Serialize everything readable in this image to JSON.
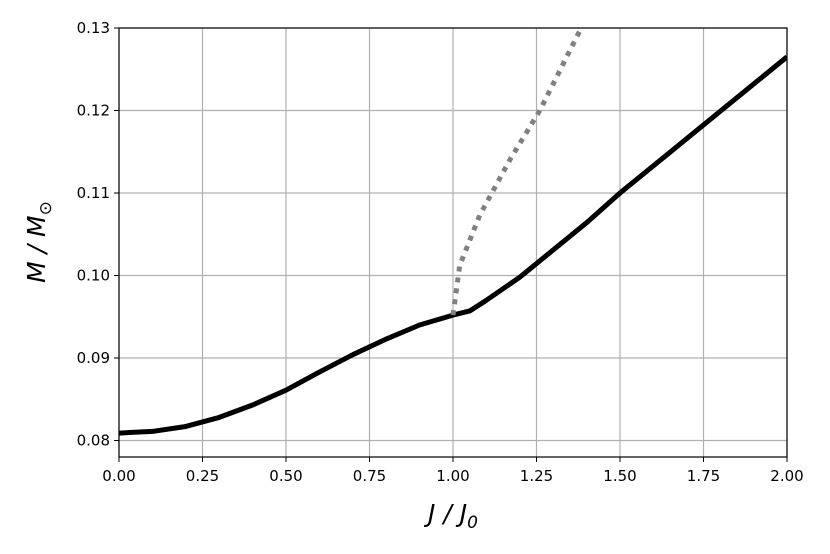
{
  "chart_data": {
    "type": "line",
    "xlabel": "J / J",
    "xlabel_sub": "0",
    "ylabel": "M / M",
    "ylabel_sub": "⊙",
    "xlim": [
      0,
      2
    ],
    "ylim": [
      0.078,
      0.13
    ],
    "xticks": [
      {
        "value": 0,
        "label": "0.00"
      },
      {
        "value": 0.25,
        "label": "0.25"
      },
      {
        "value": 0.5,
        "label": "0.50"
      },
      {
        "value": 0.75,
        "label": "0.75"
      },
      {
        "value": 1,
        "label": "1.00"
      },
      {
        "value": 1.25,
        "label": "1.25"
      },
      {
        "value": 1.5,
        "label": "1.50"
      },
      {
        "value": 1.75,
        "label": "1.75"
      },
      {
        "value": 2,
        "label": "2.00"
      }
    ],
    "yticks": [
      0.08,
      0.09,
      {
        "value": 0.1,
        "label": "0.10"
      },
      0.11,
      0.12,
      0.13
    ],
    "grid": true,
    "series": [
      {
        "color": "#000000",
        "style": "solid",
        "x": [
          0,
          0.1,
          0.2,
          0.3,
          0.4,
          0.5,
          0.6,
          0.7,
          0.8,
          0.9,
          1.0,
          1.05,
          1.1,
          1.2,
          1.3,
          1.4,
          1.5,
          1.6,
          1.7,
          1.8,
          1.9,
          2.0
        ],
        "values": [
          0.0809,
          0.0811,
          0.0817,
          0.0828,
          0.0843,
          0.0861,
          0.0883,
          0.0904,
          0.0923,
          0.094,
          0.0952,
          0.0957,
          0.097,
          0.0998,
          0.1031,
          0.1064,
          0.11,
          0.1133,
          0.1166,
          0.1199,
          0.1232,
          0.1265
        ]
      },
      {
        "color": "#808080",
        "style": "dotted",
        "x": [
          1.0,
          1.02,
          1.08,
          1.17,
          1.26,
          1.38
        ],
        "values": [
          0.0952,
          0.1012,
          0.1073,
          0.114,
          0.12,
          0.1297
        ]
      }
    ]
  }
}
